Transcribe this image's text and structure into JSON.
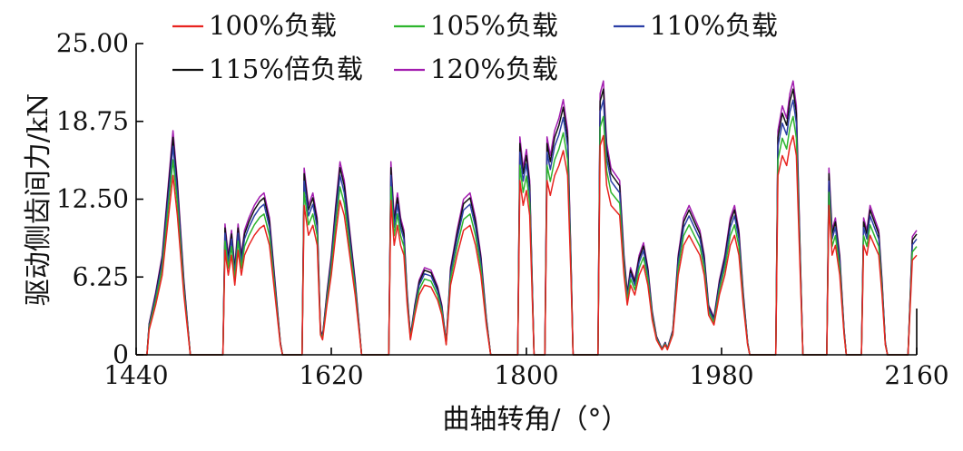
{
  "chart_data": {
    "type": "line",
    "xlabel": "曲轴转角/（°）",
    "ylabel": "驱动侧齿间力/kN",
    "xlim": [
      1440,
      2160
    ],
    "ylim": [
      0,
      25
    ],
    "x_ticks": [
      {
        "value": 1440,
        "label": "1440"
      },
      {
        "value": 1620,
        "label": "1620"
      },
      {
        "value": 1800,
        "label": "1800"
      },
      {
        "value": 1980,
        "label": "1980"
      },
      {
        "value": 2160,
        "label": "2160"
      }
    ],
    "y_ticks": [
      {
        "value": 0,
        "label": "0"
      },
      {
        "value": 6.25,
        "label": "6.25"
      },
      {
        "value": 12.5,
        "label": "12.50"
      },
      {
        "value": 18.75,
        "label": "18.75"
      },
      {
        "value": 25,
        "label": "25.00"
      }
    ],
    "legend_position": "top",
    "grid": false,
    "series": [
      {
        "name": "100%负载",
        "color": "#e8231f",
        "scale": 0.8
      },
      {
        "name": "105%负载",
        "color": "#2db52d",
        "scale": 0.87
      },
      {
        "name": "110%负载",
        "color": "#2b3fa6",
        "scale": 0.93
      },
      {
        "name": "115%倍负载",
        "color": "#111111",
        "scale": 0.97
      },
      {
        "name": "120%负载",
        "color": "#a21caf",
        "scale": 1.0
      }
    ],
    "envelope_120": [
      [
        1440,
        0
      ],
      [
        1450,
        0
      ],
      [
        1452,
        2.5
      ],
      [
        1458,
        5
      ],
      [
        1464,
        8
      ],
      [
        1470,
        14
      ],
      [
        1474,
        18
      ],
      [
        1478,
        14
      ],
      [
        1484,
        6
      ],
      [
        1488,
        2
      ],
      [
        1490,
        0
      ],
      [
        1520,
        0
      ],
      [
        1522,
        10.5
      ],
      [
        1525,
        8
      ],
      [
        1528,
        10
      ],
      [
        1531,
        7
      ],
      [
        1534,
        10.5
      ],
      [
        1537,
        8
      ],
      [
        1540,
        10
      ],
      [
        1544,
        11
      ],
      [
        1549,
        12
      ],
      [
        1554,
        12.7
      ],
      [
        1558,
        13
      ],
      [
        1563,
        11
      ],
      [
        1568,
        6
      ],
      [
        1573,
        1
      ],
      [
        1575,
        0
      ],
      [
        1593,
        0
      ],
      [
        1595,
        15
      ],
      [
        1599,
        12
      ],
      [
        1603,
        13
      ],
      [
        1607,
        11
      ],
      [
        1610,
        2
      ],
      [
        1612,
        1.5
      ],
      [
        1616,
        5
      ],
      [
        1620,
        8
      ],
      [
        1624,
        12
      ],
      [
        1628,
        15.5
      ],
      [
        1632,
        14
      ],
      [
        1637,
        10
      ],
      [
        1642,
        6
      ],
      [
        1646,
        2
      ],
      [
        1648,
        0
      ],
      [
        1673,
        0
      ],
      [
        1675,
        15.5
      ],
      [
        1678,
        11
      ],
      [
        1681,
        13
      ],
      [
        1684,
        11
      ],
      [
        1687,
        10
      ],
      [
        1690,
        5
      ],
      [
        1693,
        1.5
      ],
      [
        1697,
        4
      ],
      [
        1701,
        6
      ],
      [
        1706,
        7
      ],
      [
        1712,
        6.8
      ],
      [
        1718,
        5.5
      ],
      [
        1722,
        4
      ],
      [
        1726,
        1
      ],
      [
        1730,
        7
      ],
      [
        1736,
        10
      ],
      [
        1742,
        12.5
      ],
      [
        1748,
        13
      ],
      [
        1753,
        11
      ],
      [
        1758,
        8
      ],
      [
        1763,
        3
      ],
      [
        1767,
        0
      ],
      [
        1792,
        0
      ],
      [
        1794,
        17.5
      ],
      [
        1797,
        15
      ],
      [
        1800,
        16.5
      ],
      [
        1803,
        14
      ],
      [
        1807,
        0
      ],
      [
        1817,
        0
      ],
      [
        1819,
        17.5
      ],
      [
        1822,
        16
      ],
      [
        1826,
        18
      ],
      [
        1830,
        19
      ],
      [
        1834,
        20.5
      ],
      [
        1838,
        18
      ],
      [
        1841,
        8
      ],
      [
        1843,
        0
      ],
      [
        1866,
        0
      ],
      [
        1868,
        21
      ],
      [
        1871,
        22
      ],
      [
        1874,
        17
      ],
      [
        1878,
        15
      ],
      [
        1882,
        14.5
      ],
      [
        1886,
        14
      ],
      [
        1890,
        8
      ],
      [
        1893,
        5
      ],
      [
        1896,
        7
      ],
      [
        1900,
        6
      ],
      [
        1904,
        8
      ],
      [
        1908,
        9
      ],
      [
        1912,
        7
      ],
      [
        1916,
        3.5
      ],
      [
        1920,
        1.5
      ],
      [
        1925,
        0.5
      ],
      [
        1928,
        1
      ],
      [
        1930,
        0.5
      ],
      [
        1935,
        2
      ],
      [
        1940,
        8
      ],
      [
        1945,
        11
      ],
      [
        1950,
        12
      ],
      [
        1955,
        11
      ],
      [
        1960,
        10
      ],
      [
        1964,
        8
      ],
      [
        1968,
        4
      ],
      [
        1973,
        3
      ],
      [
        1978,
        6
      ],
      [
        1983,
        8
      ],
      [
        1988,
        11
      ],
      [
        1992,
        12
      ],
      [
        1996,
        10
      ],
      [
        2000,
        5
      ],
      [
        2004,
        1
      ],
      [
        2006,
        0
      ],
      [
        2030,
        0
      ],
      [
        2032,
        18
      ],
      [
        2036,
        20
      ],
      [
        2040,
        19
      ],
      [
        2043,
        21
      ],
      [
        2046,
        22
      ],
      [
        2049,
        20
      ],
      [
        2052,
        10
      ],
      [
        2055,
        0
      ],
      [
        2077,
        0
      ],
      [
        2079,
        15
      ],
      [
        2082,
        10
      ],
      [
        2085,
        11
      ],
      [
        2089,
        8
      ],
      [
        2093,
        2
      ],
      [
        2095,
        0
      ],
      [
        2109,
        0
      ],
      [
        2111,
        11
      ],
      [
        2114,
        10
      ],
      [
        2117,
        12
      ],
      [
        2121,
        11
      ],
      [
        2125,
        10
      ],
      [
        2128,
        6
      ],
      [
        2131,
        1
      ],
      [
        2133,
        0
      ],
      [
        2152,
        0
      ],
      [
        2156,
        9.5
      ],
      [
        2160,
        10
      ]
    ]
  }
}
